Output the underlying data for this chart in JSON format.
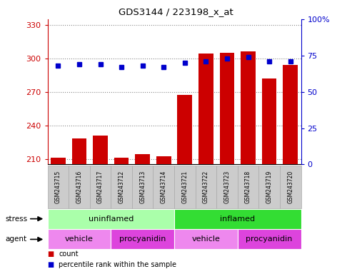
{
  "title": "GDS3144 / 223198_x_at",
  "samples": [
    "GSM243715",
    "GSM243716",
    "GSM243717",
    "GSM243712",
    "GSM243713",
    "GSM243714",
    "GSM243721",
    "GSM243722",
    "GSM243723",
    "GSM243718",
    "GSM243719",
    "GSM243720"
  ],
  "counts": [
    211,
    228,
    231,
    211,
    214,
    212,
    267,
    304,
    305,
    306,
    282,
    294
  ],
  "percentile_ranks": [
    68,
    69,
    69,
    67,
    68,
    67,
    70,
    71,
    73,
    74,
    71,
    71
  ],
  "bar_color": "#cc0000",
  "dot_color": "#0000cc",
  "ylim_left": [
    205,
    335
  ],
  "ylim_right": [
    0,
    100
  ],
  "yticks_left": [
    210,
    240,
    270,
    300,
    330
  ],
  "yticks_right": [
    0,
    25,
    50,
    75,
    100
  ],
  "stress_groups": [
    {
      "label": "uninflamed",
      "start": 0,
      "end": 6,
      "color": "#aaffaa"
    },
    {
      "label": "inflamed",
      "start": 6,
      "end": 12,
      "color": "#33dd33"
    }
  ],
  "agent_groups": [
    {
      "label": "vehicle",
      "start": 0,
      "end": 3,
      "color": "#ee88ee"
    },
    {
      "label": "procyanidin",
      "start": 3,
      "end": 6,
      "color": "#dd44dd"
    },
    {
      "label": "vehicle",
      "start": 6,
      "end": 9,
      "color": "#ee88ee"
    },
    {
      "label": "procyanidin",
      "start": 9,
      "end": 12,
      "color": "#dd44dd"
    }
  ],
  "legend_count_color": "#cc0000",
  "legend_dot_color": "#0000cc",
  "grid_color": "#888888",
  "tick_color_left": "#cc0000",
  "tick_color_right": "#0000cc",
  "sample_box_color": "#cccccc",
  "sample_box_edge": "#aaaaaa",
  "bg_color": "#ffffff"
}
